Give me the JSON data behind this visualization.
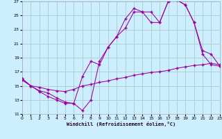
{
  "bg_color": "#cceeff",
  "grid_color": "#aacccc",
  "line_color": "#990099",
  "xlim": [
    0,
    23
  ],
  "ylim": [
    11,
    27
  ],
  "xticks": [
    0,
    1,
    2,
    3,
    4,
    5,
    6,
    7,
    8,
    9,
    10,
    11,
    12,
    13,
    14,
    15,
    16,
    17,
    18,
    19,
    20,
    21,
    22,
    23
  ],
  "yticks": [
    11,
    13,
    15,
    17,
    19,
    21,
    23,
    25,
    27
  ],
  "xlabel": "Windchill (Refroidissement éolien,°C)",
  "curve1_x": [
    0,
    1,
    2,
    3,
    4,
    5,
    6,
    7,
    8,
    9,
    10,
    11,
    12,
    13,
    14,
    15,
    16,
    17,
    18,
    19,
    20,
    21,
    22,
    23
  ],
  "curve1_y": [
    16.0,
    15.0,
    14.2,
    13.5,
    13.0,
    12.5,
    12.5,
    11.5,
    13.0,
    18.5,
    20.5,
    22.0,
    23.2,
    25.5,
    25.5,
    25.5,
    24.0,
    27.0,
    27.2,
    26.5,
    24.0,
    19.5,
    18.0,
    17.8
  ],
  "curve2_x": [
    0,
    1,
    2,
    3,
    4,
    5,
    6,
    7,
    8,
    9,
    10,
    11,
    12,
    13,
    14,
    15,
    16,
    17,
    18,
    19,
    20,
    21,
    22,
    23
  ],
  "curve2_y": [
    16.0,
    15.0,
    14.3,
    14.0,
    13.3,
    12.7,
    12.5,
    16.3,
    18.5,
    18.0,
    20.5,
    22.0,
    24.5,
    26.0,
    25.5,
    24.0,
    24.0,
    27.0,
    27.2,
    26.5,
    24.0,
    20.0,
    19.5,
    17.8
  ],
  "curve3_x": [
    0,
    1,
    2,
    3,
    4,
    5,
    6,
    7,
    8,
    9,
    10,
    11,
    12,
    13,
    14,
    15,
    16,
    17,
    18,
    19,
    20,
    21,
    22,
    23
  ],
  "curve3_y": [
    15.8,
    15.0,
    14.8,
    14.5,
    14.3,
    14.2,
    14.5,
    15.0,
    15.2,
    15.5,
    15.7,
    16.0,
    16.2,
    16.5,
    16.7,
    16.9,
    17.0,
    17.2,
    17.5,
    17.7,
    17.9,
    18.0,
    18.2,
    18.0
  ]
}
